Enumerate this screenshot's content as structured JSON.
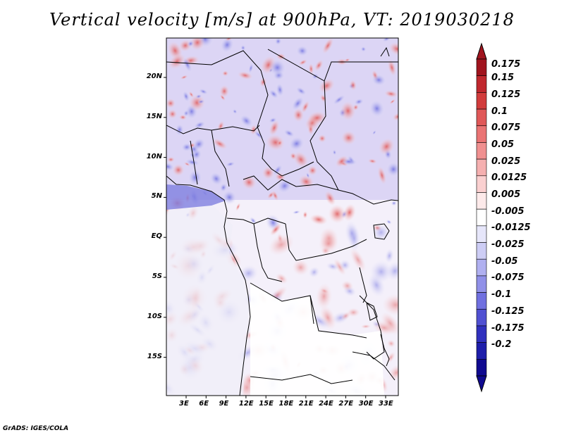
{
  "title": "Vertical velocity [m/s] at 900hPa, VT: 2019030218",
  "credit": "GrADS: IGES/COLA",
  "map": {
    "lon_ticks": [
      "3E",
      "6E",
      "9E",
      "12E",
      "15E",
      "18E",
      "21E",
      "24E",
      "27E",
      "30E",
      "33E"
    ],
    "lat_ticks": [
      "20N",
      "15N",
      "10N",
      "5N",
      "EQ",
      "5S",
      "10S",
      "15S"
    ],
    "colors": {
      "border": "#000000",
      "ocean_nodata": "#ffffff"
    }
  },
  "colorbar": {
    "labels": [
      "0.175",
      "0.15",
      "0.125",
      "0.1",
      "0.075",
      "0.05",
      "0.025",
      "0.0125",
      "0.005",
      "-0.005",
      "-0.0125",
      "-0.025",
      "-0.05",
      "-0.075",
      "-0.1",
      "-0.125",
      "-0.175",
      "-0.2"
    ],
    "colors": [
      "#a0141e",
      "#c0282e",
      "#d23c3c",
      "#e05858",
      "#ea7474",
      "#f09090",
      "#f5b0b0",
      "#fad0d0",
      "#fdeaea",
      "#ffffff",
      "#e6e6fa",
      "#cdcdf5",
      "#b0b0f0",
      "#9090e8",
      "#7070e0",
      "#5050d2",
      "#3030be",
      "#1e1eaa",
      "#100a90"
    ]
  }
}
